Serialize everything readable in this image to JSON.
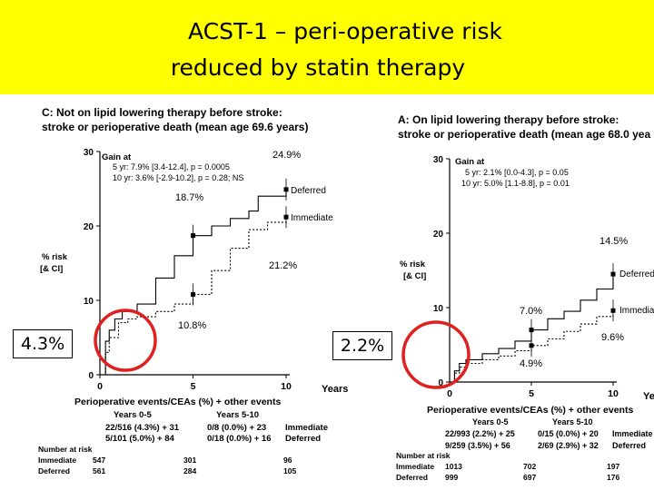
{
  "title": {
    "line1": "ACST-1 – peri-operative risk",
    "line2": "reduced by statin therapy",
    "background": "#ffff00"
  },
  "callouts": {
    "left": "4.3%",
    "right": "2.2%",
    "circle_color": "#e02020"
  },
  "chart_data": [
    {
      "type": "line",
      "title": "C: Not on lipid lowering therapy before stroke:",
      "subtitle": "stroke or perioperative death (mean age 69.6 years)",
      "ylabel": "% risk",
      "ylabel2": "[& CI]",
      "xlabel": "Years",
      "ylim": [
        0,
        30
      ],
      "xlim": [
        0,
        10
      ],
      "yticks": [
        "0",
        "10",
        "20",
        "30"
      ],
      "xticks": [
        "0",
        "5",
        "10"
      ],
      "gain_lines": [
        "Gain at",
        "5 yr: 7.9% [3.4-12.4], p = 0.0005",
        "10 yr: 3.6% [-2.9-10.2], p = 0.28; NS"
      ],
      "series": [
        {
          "name": "Deferred",
          "style": "solid",
          "x": [
            0,
            0.3,
            0.5,
            0.8,
            1.2,
            2,
            3,
            4,
            5,
            6,
            7,
            8,
            8.5,
            9,
            10
          ],
          "y": [
            0,
            4.5,
            6,
            7.5,
            8.5,
            9.5,
            13,
            16,
            18.7,
            20,
            21,
            22,
            24,
            24,
            24.9
          ]
        },
        {
          "name": "Immediate",
          "style": "dotted",
          "x": [
            0,
            0.3,
            0.5,
            1,
            1.5,
            2,
            3,
            4,
            5,
            6,
            7,
            8,
            9,
            10
          ],
          "y": [
            0,
            3,
            5,
            7,
            7.5,
            7.8,
            8.5,
            9.5,
            10.8,
            14,
            17,
            19.5,
            20.5,
            21.2
          ]
        }
      ],
      "point_labels": [
        "24.9%",
        "18.7%",
        "21.2%",
        "10.8%"
      ],
      "footer": {
        "events_title": "Perioperative events/CEAs (%) + other events",
        "period1": "Years 0-5",
        "period2": "Years 5-10",
        "row1": [
          "22/516 (4.3%) + 31",
          "0/8 (0.0%) + 23",
          "Immediate"
        ],
        "row2": [
          "5/101 (5.0%) + 84",
          "0/18 (0.0%) + 16",
          "Deferred"
        ],
        "risk_title": "Number at risk",
        "risk_rows": [
          [
            "Immediate",
            "547",
            "301",
            "96"
          ],
          [
            "Deferred",
            "561",
            "284",
            "105"
          ]
        ]
      }
    },
    {
      "type": "line",
      "title": "A: On lipid lowering therapy before stroke:",
      "subtitle": "stroke or perioperative death (mean age 68.0 yea",
      "ylabel": "% risk",
      "ylabel2": "[& CI]",
      "xlabel": "Ye",
      "ylim": [
        0,
        30
      ],
      "xlim": [
        0,
        10
      ],
      "yticks": [
        "0",
        "10",
        "20",
        "30"
      ],
      "xticks": [
        "0",
        "5",
        "10"
      ],
      "gain_lines": [
        "Gain at",
        "5 yr: 2.1% [0.0-4.3], p = 0.05",
        "10 yr: 5.0% [1.1-8.8], p = 0.01"
      ],
      "series": [
        {
          "name": "Deferred",
          "style": "solid",
          "x": [
            0,
            0.3,
            0.6,
            1,
            2,
            3,
            4,
            5,
            6,
            7,
            8,
            9,
            10
          ],
          "y": [
            0,
            1.5,
            2.5,
            3,
            3.8,
            4.5,
            5.5,
            7.0,
            8.5,
            9.5,
            11,
            12.5,
            14.5
          ]
        },
        {
          "name": "Immediate",
          "style": "dotted",
          "x": [
            0,
            0.3,
            0.6,
            1,
            2,
            3,
            4,
            5,
            6,
            7,
            8,
            9,
            10
          ],
          "y": [
            0,
            1.2,
            2,
            2.5,
            3,
            3.5,
            4.2,
            4.9,
            5.8,
            6.8,
            7.8,
            8.8,
            9.6
          ]
        }
      ],
      "point_labels": [
        "14.5%",
        "7.0%",
        "4.9%",
        "9.6%"
      ],
      "footer": {
        "events_title": "Perioperative events/CEAs (%) + other events",
        "period1": "Years 0-5",
        "period2": "Years 5-10",
        "row1": [
          "22/993 (2.2%) + 25",
          "0/15 (0.0%) + 20",
          "Immediate"
        ],
        "row2": [
          "9/259 (3.5%) + 56",
          "2/69 (2.9%) + 32",
          "Deferred"
        ],
        "risk_title": "Number at risk",
        "risk_rows": [
          [
            "Immediate",
            "1013",
            "702",
            "197"
          ],
          [
            "Deferred",
            "999",
            "697",
            "176"
          ]
        ]
      }
    }
  ]
}
